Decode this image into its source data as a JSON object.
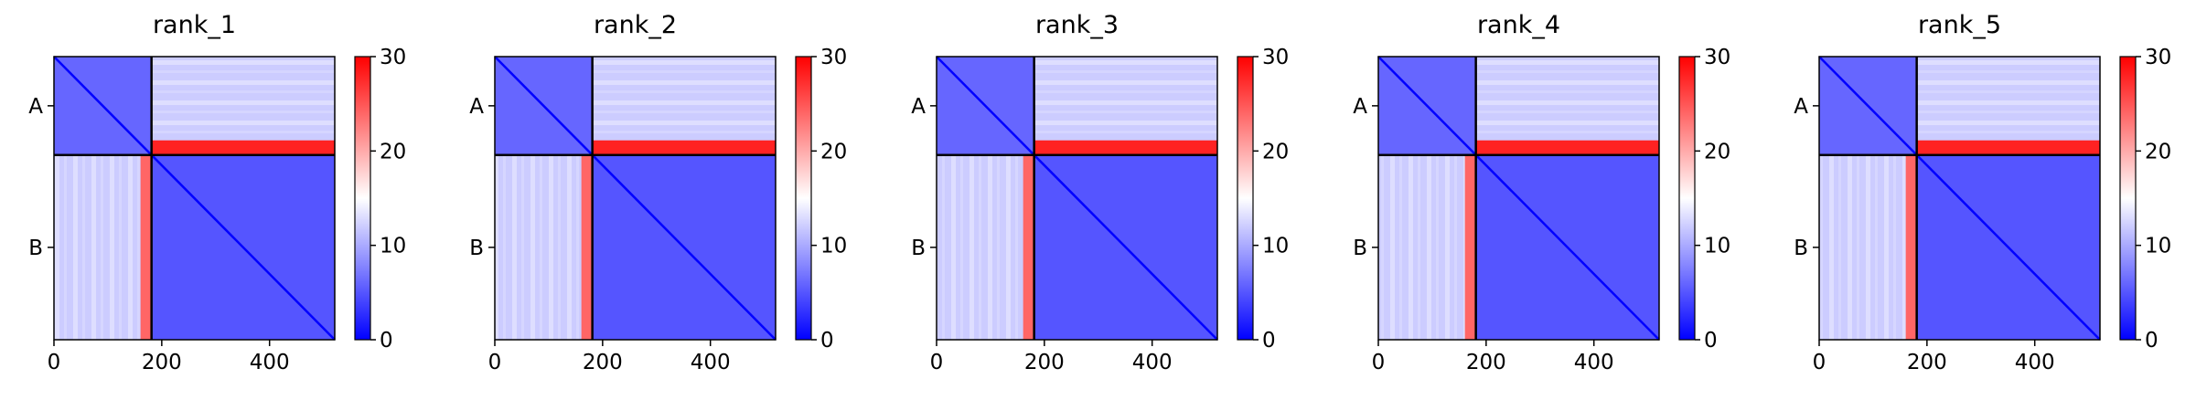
{
  "figure": {
    "panels": [
      {
        "title": "rank_1"
      },
      {
        "title": "rank_2"
      },
      {
        "title": "rank_3"
      },
      {
        "title": "rank_4"
      },
      {
        "title": "rank_5"
      }
    ]
  },
  "chart_data": {
    "type": "heatmap",
    "description_free": true,
    "panels": [
      "rank_1",
      "rank_2",
      "rank_3",
      "rank_4",
      "rank_5"
    ],
    "x_ticks": [
      0,
      200,
      400
    ],
    "xlim": [
      0,
      521
    ],
    "chain_labels": [
      "A",
      "B"
    ],
    "chain_boundary": 181,
    "chain_lengths": {
      "A": 181,
      "B": 340
    },
    "colorbar": {
      "min": 0,
      "max": 30,
      "ticks": [
        0,
        10,
        20,
        30
      ],
      "colormap": "bwr",
      "low": "#0000ff",
      "mid": "#ffffff",
      "high": "#ff0000"
    },
    "typical_values": {
      "A_A_block": 6,
      "B_B_block": 5,
      "A_B_block": 12,
      "B_A_block": 12,
      "A_B_lower_rows": 28,
      "B_A_right_columns": 24,
      "diagonal": 0
    }
  }
}
